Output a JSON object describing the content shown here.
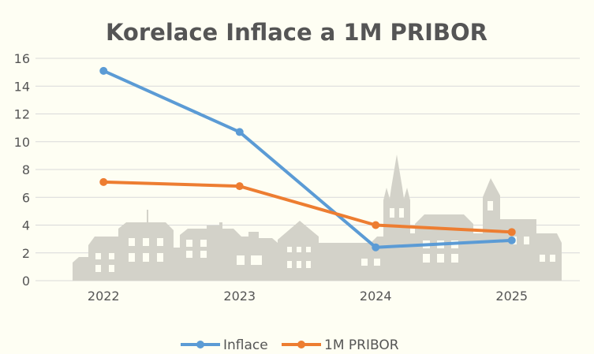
{
  "chart_data": {
    "type": "line",
    "title": "Korelace Inflace a 1M PRIBOR",
    "xlabel": "",
    "ylabel": "",
    "categories": [
      "2022",
      "2023",
      "2024",
      "2025"
    ],
    "ylim": [
      0,
      16
    ],
    "yticks": [
      "0",
      "2",
      "4",
      "6",
      "8",
      "10",
      "12",
      "14",
      "16"
    ],
    "grid": true,
    "legend_position": "bottom",
    "series": [
      {
        "name": "Inflace",
        "values": [
          15.1,
          10.7,
          2.4,
          2.9
        ],
        "color": "#5b9bd5"
      },
      {
        "name": "1M PRIBOR",
        "values": [
          7.1,
          6.8,
          4.0,
          3.5
        ],
        "color": "#ed7d31"
      }
    ]
  }
}
